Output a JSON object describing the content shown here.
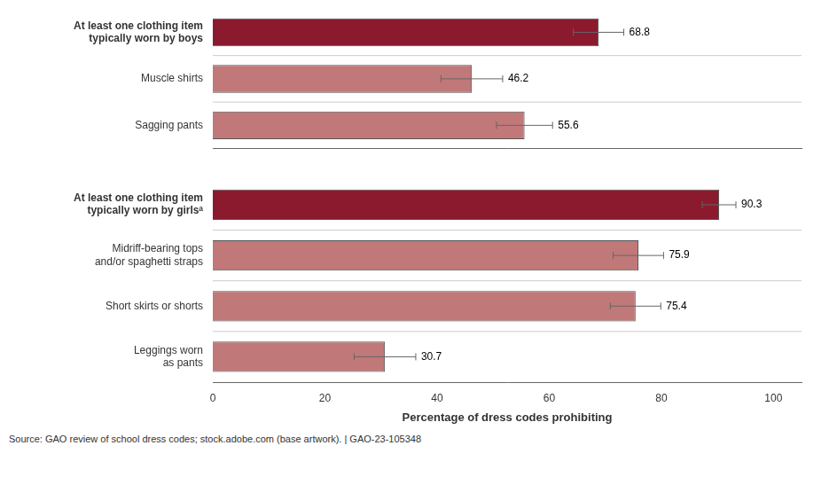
{
  "chart_data": [
    {
      "type": "bar",
      "orientation": "horizontal",
      "categories": [
        "At least one clothing item\ntypically worn by boys",
        "Muscle shirts",
        "Sagging pants"
      ],
      "values": [
        68.8,
        46.2,
        55.6
      ],
      "errors": [
        4.5,
        5.5,
        5.0
      ],
      "colors": [
        "#8B1A2E",
        "#C07878",
        "#C07878"
      ],
      "xlim": [
        0,
        105
      ],
      "xticks": [
        0,
        20,
        40,
        60,
        80,
        100
      ],
      "grid": false,
      "data_labels": true,
      "tick_labels": "y"
    },
    {
      "type": "bar",
      "orientation": "horizontal",
      "categories": [
        "At least one clothing item\ntypically worn by girlsᵃ",
        "Midriff-bearing tops\nand/or spaghetti straps",
        "Short skirts or shorts",
        "Leggings worn\nas pants"
      ],
      "values": [
        90.3,
        75.9,
        75.4,
        30.7
      ],
      "errors": [
        3.0,
        4.5,
        4.5,
        5.5
      ],
      "colors": [
        "#8B1A2E",
        "#C07878",
        "#C07878",
        "#C07878"
      ],
      "xlim": [
        0,
        105
      ],
      "xticks": [
        0,
        20,
        40,
        60,
        80,
        100
      ],
      "x_label": "Percentage of dress codes prohibiting",
      "annotations": [
        "Source: GAO review of school dress codes; stock.adobe.com (base artwork).  |  GAO-23-105348"
      ],
      "grid": false,
      "data_labels": true
    }
  ]
}
